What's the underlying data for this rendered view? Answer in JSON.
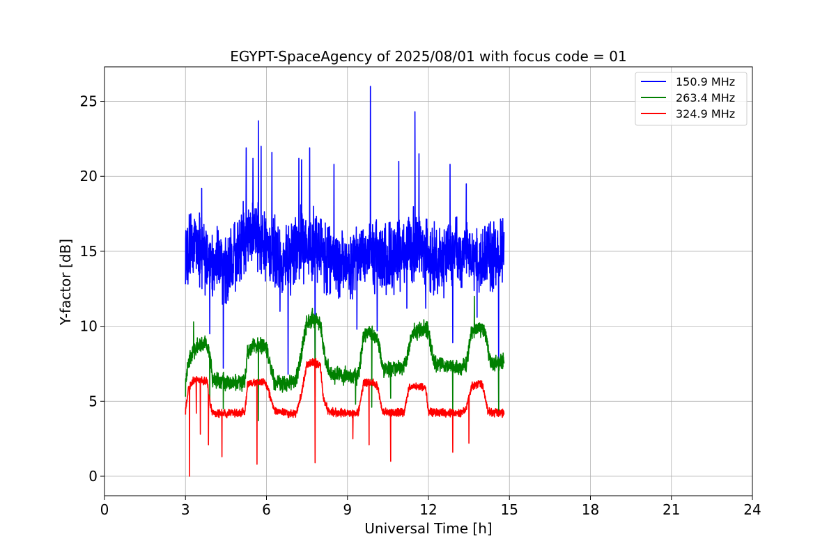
{
  "chart_data": {
    "type": "line",
    "title": "EGYPT-SpaceAgency of 2025/08/01 with focus code = 01",
    "xlabel": "Universal Time [h]",
    "ylabel": "Y-factor [dB]",
    "xlim": [
      0,
      24
    ],
    "ylim": [
      -1.3,
      27.3
    ],
    "xticks": [
      0,
      3,
      6,
      9,
      12,
      15,
      18,
      21,
      24
    ],
    "yticks": [
      0,
      5,
      10,
      15,
      20,
      25
    ],
    "grid": true,
    "legend_position": "top-right",
    "series": [
      {
        "name": "150.9 MHz",
        "color": "#0000ff",
        "x": [
          3.0,
          3.3,
          3.6,
          4.0,
          4.5,
          5.0,
          5.3,
          5.7,
          6.2,
          6.8,
          7.3,
          7.7,
          8.2,
          8.8,
          9.4,
          9.8,
          10.3,
          10.8,
          11.3,
          11.6,
          12.0,
          12.6,
          13.0,
          13.6,
          14.0,
          14.4,
          14.8
        ],
        "y": [
          14.5,
          15.5,
          15.0,
          14.5,
          14.0,
          14.8,
          16.5,
          16.0,
          15.0,
          14.5,
          15.5,
          15.5,
          14.5,
          14.0,
          14.5,
          15.0,
          14.5,
          14.5,
          15.5,
          15.5,
          14.5,
          14.5,
          15.0,
          15.0,
          14.5,
          14.5,
          14.5
        ],
        "peaks": [
          [
            3.0,
            12.8
          ],
          [
            3.2,
            17.5
          ],
          [
            3.6,
            19.2
          ],
          [
            3.9,
            9.5
          ],
          [
            4.4,
            7.2
          ],
          [
            4.8,
            16.8
          ],
          [
            5.25,
            21.9
          ],
          [
            5.5,
            21.2
          ],
          [
            5.7,
            23.7
          ],
          [
            5.8,
            22.0
          ],
          [
            6.2,
            21.6
          ],
          [
            6.5,
            11.0
          ],
          [
            6.8,
            6.8
          ],
          [
            7.2,
            21.2
          ],
          [
            7.3,
            21.1
          ],
          [
            7.6,
            21.9
          ],
          [
            7.8,
            6.4
          ],
          [
            8.5,
            20.8
          ],
          [
            9.35,
            9.8
          ],
          [
            9.85,
            26.0
          ],
          [
            10.1,
            9.7
          ],
          [
            10.9,
            21.0
          ],
          [
            11.2,
            11.2
          ],
          [
            11.5,
            24.3
          ],
          [
            11.65,
            21.5
          ],
          [
            11.9,
            11.2
          ],
          [
            12.8,
            20.8
          ],
          [
            12.9,
            8.9
          ],
          [
            13.4,
            19.5
          ],
          [
            13.8,
            10.6
          ],
          [
            14.6,
            4.5
          ],
          [
            14.7,
            17.0
          ]
        ]
      },
      {
        "name": "263.4 MHz",
        "color": "#008000",
        "x": [
          3.0,
          3.1,
          3.3,
          3.5,
          3.7,
          3.9,
          4.0,
          4.5,
          5.0,
          5.2,
          5.3,
          5.5,
          5.8,
          6.0,
          6.3,
          6.7,
          7.1,
          7.3,
          7.5,
          7.8,
          8.0,
          8.2,
          8.4,
          9.0,
          9.4,
          9.6,
          9.8,
          10.1,
          10.3,
          10.7,
          11.1,
          11.4,
          11.8,
          12.0,
          12.2,
          12.8,
          13.2,
          13.4,
          13.6,
          13.9,
          14.1,
          14.3,
          14.8
        ],
        "y": [
          6.2,
          7.5,
          8.4,
          8.7,
          8.8,
          8.3,
          6.4,
          6.3,
          6.2,
          6.4,
          8.2,
          8.7,
          8.7,
          8.5,
          6.2,
          6.1,
          6.4,
          8.2,
          10.3,
          10.4,
          10.1,
          7.5,
          6.8,
          6.7,
          6.6,
          9.4,
          9.6,
          9.2,
          7.2,
          7.2,
          7.3,
          9.5,
          9.9,
          9.7,
          7.5,
          7.4,
          7.2,
          7.5,
          9.6,
          9.9,
          9.6,
          7.5,
          7.6
        ],
        "peaks": [
          [
            3.0,
            5.3
          ],
          [
            3.3,
            10.3
          ],
          [
            3.9,
            5.0
          ],
          [
            4.4,
            4.5
          ],
          [
            5.7,
            3.7
          ],
          [
            7.7,
            11.2
          ],
          [
            7.8,
            5.3
          ],
          [
            9.3,
            4.8
          ],
          [
            9.9,
            4.6
          ],
          [
            10.6,
            5.2
          ],
          [
            12.9,
            4.1
          ],
          [
            13.7,
            12.0
          ],
          [
            14.6,
            4.2
          ]
        ]
      },
      {
        "name": "324.9 MHz",
        "color": "#ff0000",
        "x": [
          3.0,
          3.1,
          3.3,
          3.6,
          3.8,
          3.9,
          4.0,
          4.5,
          5.0,
          5.2,
          5.3,
          5.6,
          5.9,
          6.0,
          6.3,
          6.8,
          7.1,
          7.3,
          7.5,
          7.8,
          8.0,
          8.1,
          8.3,
          9.0,
          9.4,
          9.6,
          9.8,
          10.1,
          10.3,
          10.7,
          11.1,
          11.3,
          11.6,
          11.9,
          12.0,
          12.5,
          13.2,
          13.4,
          13.6,
          13.9,
          14.0,
          14.2,
          14.8
        ],
        "y": [
          4.3,
          5.8,
          6.4,
          6.4,
          6.3,
          5.0,
          4.2,
          4.2,
          4.2,
          4.3,
          6.1,
          6.3,
          6.3,
          6.1,
          4.4,
          4.2,
          4.2,
          5.5,
          7.5,
          7.6,
          7.4,
          5.2,
          4.3,
          4.2,
          4.2,
          6.2,
          6.3,
          6.1,
          4.3,
          4.2,
          4.3,
          6.0,
          6.0,
          5.9,
          4.3,
          4.2,
          4.2,
          4.5,
          6.0,
          6.2,
          6.1,
          4.3,
          4.2
        ],
        "peaks": [
          [
            3.15,
            0.0
          ],
          [
            3.4,
            4.2
          ],
          [
            3.55,
            2.8
          ],
          [
            3.85,
            2.1
          ],
          [
            4.35,
            1.3
          ],
          [
            5.65,
            0.8
          ],
          [
            7.8,
            0.9
          ],
          [
            9.2,
            2.5
          ],
          [
            9.8,
            2.1
          ],
          [
            10.6,
            1.0
          ],
          [
            12.9,
            1.6
          ],
          [
            13.5,
            2.2
          ]
        ]
      }
    ]
  }
}
